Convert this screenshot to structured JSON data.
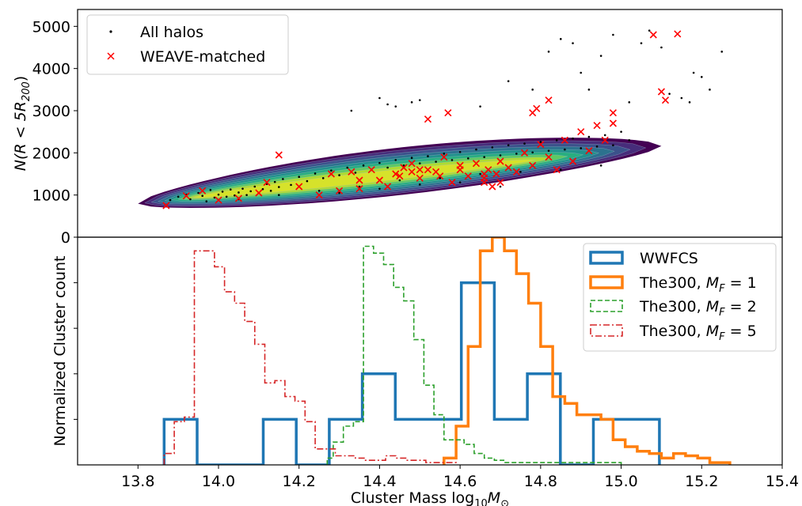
{
  "figure": {
    "xlabel": "Cluster Mass log",
    "xlabel_sub": "10",
    "xlabel_m": "M",
    "xlabel_msub": "⊙",
    "top_ylabel": "N(R < 5R",
    "top_ylabel_sub": "200",
    "top_ylabel_end": ")",
    "bottom_ylabel": "Normalized Cluster count"
  },
  "chart_data": [
    {
      "type": "scatter",
      "title": "",
      "xlim": [
        13.65,
        15.4
      ],
      "ylim": [
        0,
        5400
      ],
      "yticks": [
        0,
        1000,
        2000,
        3000,
        4000,
        5000
      ],
      "ytick_labels": [
        "0",
        "1000",
        "2000",
        "3000",
        "4000",
        "5000"
      ],
      "density_contours": true,
      "colormap": "viridis",
      "legend_position": "upper-left",
      "series": [
        {
          "name": "All halos",
          "marker": "dot",
          "color": "#000000",
          "points": [
            [
              13.88,
              880
            ],
            [
              13.9,
              960
            ],
            [
              13.92,
              1010
            ],
            [
              13.93,
              900
            ],
            [
              13.95,
              1050
            ],
            [
              13.96,
              980
            ],
            [
              13.98,
              1120
            ],
            [
              13.99,
              940
            ],
            [
              14.0,
              1010
            ],
            [
              14.01,
              1080
            ],
            [
              14.02,
              960
            ],
            [
              14.03,
              1130
            ],
            [
              14.04,
              990
            ],
            [
              14.05,
              1060
            ],
            [
              14.06,
              1150
            ],
            [
              14.07,
              1000
            ],
            [
              14.08,
              1090
            ],
            [
              14.09,
              1200
            ],
            [
              14.1,
              1050
            ],
            [
              14.11,
              1140
            ],
            [
              14.12,
              1260
            ],
            [
              14.13,
              1100
            ],
            [
              14.14,
              1310
            ],
            [
              14.15,
              1190
            ],
            [
              14.16,
              1380
            ],
            [
              14.18,
              1240
            ],
            [
              14.2,
              1430
            ],
            [
              14.22,
              1330
            ],
            [
              14.24,
              1510
            ],
            [
              14.26,
              1400
            ],
            [
              14.28,
              1580
            ],
            [
              14.3,
              1470
            ],
            [
              14.32,
              1650
            ],
            [
              14.34,
              1530
            ],
            [
              14.36,
              1700
            ],
            [
              14.38,
              1600
            ],
            [
              14.4,
              1760
            ],
            [
              14.42,
              1650
            ],
            [
              14.44,
              1830
            ],
            [
              14.46,
              1700
            ],
            [
              14.48,
              1880
            ],
            [
              14.5,
              1750
            ],
            [
              14.52,
              1920
            ],
            [
              14.54,
              1790
            ],
            [
              14.56,
              1980
            ],
            [
              14.58,
              1830
            ],
            [
              14.6,
              2020
            ],
            [
              14.62,
              1870
            ],
            [
              14.64,
              2080
            ],
            [
              14.66,
              1900
            ],
            [
              14.68,
              2130
            ],
            [
              14.7,
              1940
            ],
            [
              14.72,
              2180
            ],
            [
              14.74,
              1980
            ],
            [
              14.76,
              2220
            ],
            [
              14.78,
              2010
            ],
            [
              14.8,
              2260
            ],
            [
              14.82,
              2050
            ],
            [
              14.84,
              2300
            ],
            [
              14.86,
              2080
            ],
            [
              14.88,
              2340
            ],
            [
              14.9,
              2110
            ],
            [
              14.92,
              2380
            ],
            [
              14.94,
              2150
            ],
            [
              14.96,
              2420
            ],
            [
              14.98,
              2180
            ],
            [
              14.35,
              1200
            ],
            [
              14.45,
              1350
            ],
            [
              14.55,
              1400
            ],
            [
              14.65,
              1500
            ],
            [
              14.75,
              1550
            ],
            [
              14.85,
              1600
            ],
            [
              14.95,
              1700
            ],
            [
              15.0,
              2500
            ],
            [
              15.02,
              2300
            ],
            [
              14.25,
              1100
            ],
            [
              14.15,
              1000
            ],
            [
              14.05,
              900
            ],
            [
              13.97,
              850
            ],
            [
              14.7,
              1200
            ],
            [
              14.6,
              1300
            ],
            [
              14.5,
              1250
            ],
            [
              14.4,
              1150
            ],
            [
              14.3,
              1050
            ],
            [
              14.48,
              3200
            ],
            [
              14.5,
              3250
            ],
            [
              14.33,
              3000
            ],
            [
              14.65,
              3100
            ],
            [
              14.72,
              3700
            ],
            [
              14.78,
              3500
            ],
            [
              14.85,
              4700
            ],
            [
              14.9,
              3900
            ],
            [
              14.95,
              4300
            ],
            [
              14.98,
              4800
            ],
            [
              15.05,
              4600
            ],
            [
              15.07,
              4900
            ],
            [
              15.1,
              4500
            ],
            [
              15.12,
              3400
            ],
            [
              15.15,
              3300
            ],
            [
              15.17,
              3200
            ],
            [
              15.18,
              3900
            ],
            [
              15.2,
              3800
            ],
            [
              15.22,
              3500
            ],
            [
              15.25,
              4400
            ],
            [
              14.88,
              4600
            ],
            [
              14.82,
              4400
            ],
            [
              14.92,
              3500
            ],
            [
              15.02,
              3200
            ],
            [
              14.4,
              3300
            ],
            [
              14.44,
              3100
            ],
            [
              14.42,
              3150
            ]
          ]
        },
        {
          "name": "WEAVE-matched",
          "marker": "x",
          "color": "#ff0000",
          "points": [
            [
              13.87,
              750
            ],
            [
              13.92,
              980
            ],
            [
              13.96,
              1100
            ],
            [
              14.0,
              880
            ],
            [
              14.05,
              920
            ],
            [
              14.1,
              1050
            ],
            [
              14.12,
              1300
            ],
            [
              14.15,
              1950
            ],
            [
              14.2,
              1200
            ],
            [
              14.25,
              1000
            ],
            [
              14.28,
              1500
            ],
            [
              14.3,
              1100
            ],
            [
              14.33,
              1550
            ],
            [
              14.35,
              1150
            ],
            [
              14.38,
              1600
            ],
            [
              14.4,
              1350
            ],
            [
              14.42,
              1200
            ],
            [
              14.44,
              1500
            ],
            [
              14.46,
              1650
            ],
            [
              14.48,
              1750
            ],
            [
              14.5,
              1400
            ],
            [
              14.52,
              1600
            ],
            [
              14.54,
              1550
            ],
            [
              14.56,
              1900
            ],
            [
              14.58,
              1300
            ],
            [
              14.6,
              1700
            ],
            [
              14.62,
              1450
            ],
            [
              14.64,
              1750
            ],
            [
              14.66,
              1300
            ],
            [
              14.67,
              1600
            ],
            [
              14.68,
              1200
            ],
            [
              14.69,
              1500
            ],
            [
              14.7,
              1800
            ],
            [
              14.72,
              1650
            ],
            [
              14.74,
              1550
            ],
            [
              14.76,
              2000
            ],
            [
              14.78,
              1700
            ],
            [
              14.8,
              2200
            ],
            [
              14.82,
              1900
            ],
            [
              14.84,
              1600
            ],
            [
              14.86,
              2300
            ],
            [
              14.88,
              1800
            ],
            [
              14.9,
              2500
            ],
            [
              14.92,
              2050
            ],
            [
              14.94,
              2650
            ],
            [
              14.96,
              2300
            ],
            [
              14.98,
              2700
            ],
            [
              14.6,
              1600
            ],
            [
              14.55,
              1450
            ],
            [
              14.5,
              1600
            ],
            [
              14.78,
              2950
            ],
            [
              14.82,
              3250
            ],
            [
              14.79,
              3050
            ],
            [
              14.52,
              2800
            ],
            [
              14.57,
              2950
            ],
            [
              14.98,
              2950
            ],
            [
              15.08,
              4800
            ],
            [
              15.14,
              4820
            ],
            [
              15.1,
              3450
            ],
            [
              15.11,
              3250
            ],
            [
              14.45,
              1450
            ],
            [
              14.48,
              1550
            ],
            [
              14.66,
              1500
            ],
            [
              14.66,
              1400
            ],
            [
              14.7,
              1300
            ],
            [
              14.35,
              1350
            ]
          ]
        }
      ]
    },
    {
      "type": "histogram",
      "title": "",
      "xlim": [
        13.65,
        15.4
      ],
      "xticks": [
        13.8,
        14.0,
        14.2,
        14.4,
        14.6,
        14.8,
        15.0,
        15.2,
        15.4
      ],
      "xtick_labels": [
        "13.8",
        "14.0",
        "14.2",
        "14.4",
        "14.6",
        "14.8",
        "15.0",
        "15.2",
        "15.4"
      ],
      "ylim": [
        0,
        1.0
      ],
      "ytick_labels": [],
      "legend_position": "upper-right",
      "series": [
        {
          "name": "WWFCS",
          "style": "solid-thick",
          "color": "#1f77b4",
          "edges": [
            13.865,
            13.947,
            14.029,
            14.111,
            14.193,
            14.275,
            14.357,
            14.439,
            14.521,
            14.603,
            14.685,
            14.767,
            14.849,
            14.931,
            15.013,
            15.095
          ],
          "values": [
            0.2,
            0.0,
            0.0,
            0.2,
            0.0,
            0.2,
            0.4,
            0.2,
            0.2,
            0.8,
            0.2,
            0.4,
            0.0,
            0.2,
            0.2
          ]
        },
        {
          "name": "The300, ",
          "name_math": "M_F = 1",
          "math_var": "M",
          "math_sub": "F",
          "math_eq": " = 1",
          "style": "solid-thick",
          "color": "#ff7f0e",
          "edges": [
            14.56,
            14.59,
            14.62,
            14.65,
            14.68,
            14.71,
            14.74,
            14.77,
            14.8,
            14.83,
            14.86,
            14.89,
            14.92,
            14.95,
            14.98,
            15.01,
            15.04,
            15.07,
            15.1,
            15.13,
            15.16,
            15.19,
            15.22,
            15.25,
            15.27
          ],
          "values": [
            0.03,
            0.17,
            0.52,
            0.94,
            1.0,
            0.94,
            0.84,
            0.71,
            0.52,
            0.3,
            0.27,
            0.22,
            0.22,
            0.2,
            0.11,
            0.08,
            0.06,
            0.05,
            0.03,
            0.05,
            0.04,
            0.03,
            0.01,
            0.01
          ]
        },
        {
          "name": "The300, ",
          "name_math": "M_F = 2",
          "math_var": "M",
          "math_sub": "F",
          "math_eq": " = 2",
          "style": "dashed",
          "color": "#2ca02c",
          "edges": [
            14.27,
            14.285,
            14.31,
            14.335,
            14.36,
            14.385,
            14.41,
            14.435,
            14.46,
            14.485,
            14.51,
            14.535,
            14.56,
            14.585,
            14.61,
            14.635,
            14.66,
            14.685,
            14.71,
            14.735,
            14.76,
            14.785,
            14.81,
            14.835,
            14.86,
            14.885,
            14.91,
            14.935,
            14.96,
            14.985,
            15.0
          ],
          "values": [
            0.03,
            0.1,
            0.17,
            0.19,
            0.96,
            0.93,
            0.88,
            0.78,
            0.72,
            0.55,
            0.35,
            0.22,
            0.11,
            0.11,
            0.09,
            0.05,
            0.03,
            0.02,
            0.01,
            0.01,
            0.01,
            0.01,
            0.01,
            0.01,
            0.01,
            0.01,
            0.01,
            0.01,
            0.01,
            0.01
          ]
        },
        {
          "name": "The300, ",
          "name_math": "M_F = 5",
          "math_var": "M",
          "math_sub": "F",
          "math_eq": " = 5",
          "style": "dashdot",
          "color": "#d62728",
          "edges": [
            13.865,
            13.89,
            13.915,
            13.94,
            13.965,
            13.99,
            14.015,
            14.04,
            14.065,
            14.09,
            14.115,
            14.14,
            14.165,
            14.19,
            14.215,
            14.24,
            14.265,
            14.29,
            14.315,
            14.34,
            14.365,
            14.39,
            14.415,
            14.44,
            14.465,
            14.49,
            14.515,
            14.54,
            14.565,
            14.59
          ],
          "values": [
            0.05,
            0.19,
            0.21,
            0.94,
            0.94,
            0.87,
            0.76,
            0.71,
            0.63,
            0.53,
            0.36,
            0.37,
            0.3,
            0.28,
            0.19,
            0.07,
            0.07,
            0.04,
            0.04,
            0.03,
            0.02,
            0.02,
            0.04,
            0.03,
            0.02,
            0.02,
            0.01,
            0.01,
            0.01
          ]
        }
      ]
    }
  ]
}
